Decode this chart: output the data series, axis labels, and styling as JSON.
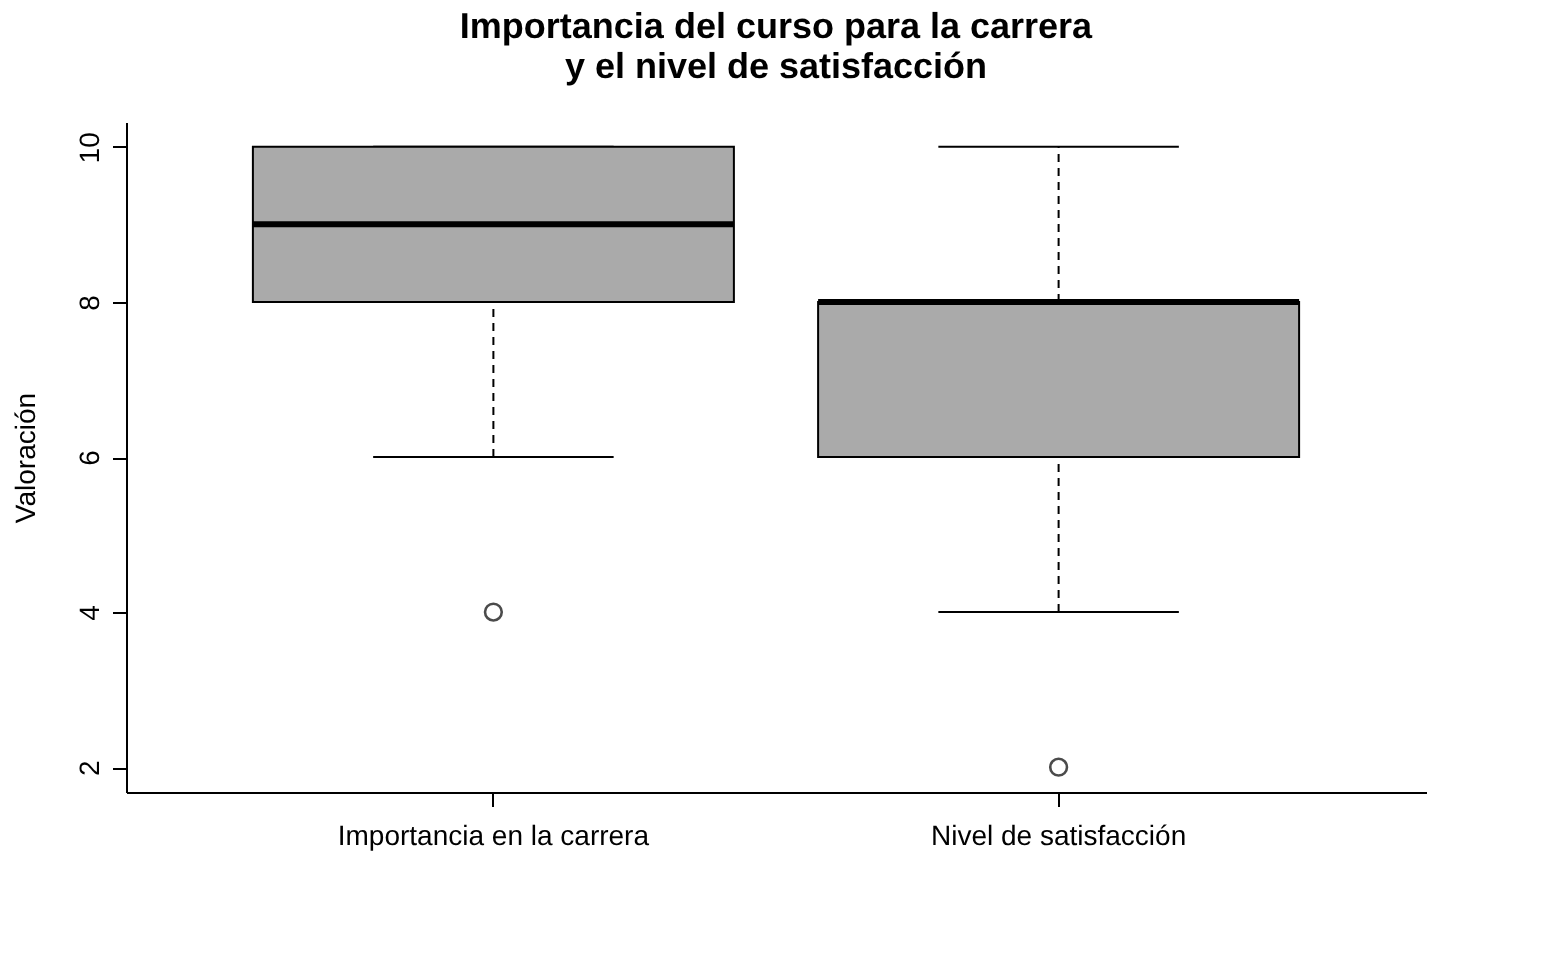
{
  "chart_data": {
    "type": "box",
    "title": "Importancia del curso para la carrera\ny el nivel de satisfacción",
    "ylabel": "Valoración",
    "categories": [
      "Importancia en la carrera",
      "Nivel de satisfacción"
    ],
    "boxes": [
      {
        "low": 6,
        "q1": 8,
        "median": 9,
        "q3": 10,
        "high": 10,
        "outliers": [
          4
        ]
      },
      {
        "low": 4,
        "q1": 6,
        "median": 8,
        "q3": 8,
        "high": 10,
        "outliers": [
          2
        ]
      }
    ],
    "color": "#aaaaaa",
    "ylim": [
      1.68,
      10.32
    ],
    "yticks": [
      2,
      4,
      6,
      8,
      10
    ],
    "grid": false
  }
}
